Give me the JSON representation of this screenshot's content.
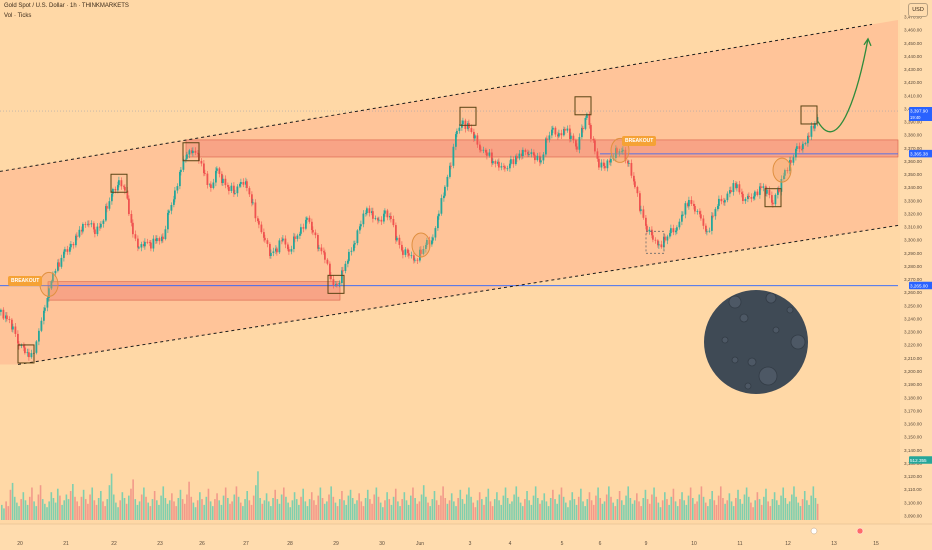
{
  "header": {
    "symbol": "Gold Spot / U.S. Dollar · 1h · THINKMARKETS",
    "volume_label": "Vol · Ticks",
    "currency": "USD"
  },
  "badges": {
    "left": "BREAKOUT",
    "mid": "BREAKOUT"
  },
  "chart_data": {
    "type": "candlestick",
    "price_axis": {
      "ticks": [
        "3,470.00",
        "3,460.00",
        "3,450.00",
        "3,440.00",
        "3,430.00",
        "3,420.00",
        "3,410.00",
        "3,400.00",
        "3,390.00",
        "3,380.00",
        "3,370.00",
        "3,360.00",
        "3,350.00",
        "3,340.00",
        "3,330.00",
        "3,320.00",
        "3,310.00",
        "3,300.00",
        "3,290.00",
        "3,280.00",
        "3,270.00",
        "3,260.00",
        "3,250.00",
        "3,240.00",
        "3,230.00",
        "3,220.00",
        "3,210.00",
        "3,200.00",
        "3,190.00",
        "3,180.00",
        "3,170.00",
        "3,160.00",
        "3,150.00",
        "3,140.00",
        "3,130.00",
        "3,120.00",
        "3,110.00",
        "3,100.00",
        "3,090.00"
      ],
      "ylim": [
        3085,
        3478
      ]
    },
    "time_axis": [
      "20",
      "21",
      "22",
      "23",
      "26",
      "27",
      "28",
      "29",
      "30",
      "Jun",
      "3",
      "4",
      "5",
      "6",
      "9",
      "10",
      "11",
      "12",
      "13",
      "15"
    ],
    "price_markers": [
      {
        "value": 3398,
        "label": "3,397.90",
        "sub": "19:40",
        "color": "#2962ff"
      },
      {
        "value": 3365.38,
        "label": "3,365.38",
        "color": "#2962ff"
      },
      {
        "value": 3265,
        "label": "3,265.00",
        "color": "#2962ff"
      },
      {
        "value": 3132,
        "label": "512.355",
        "color": "#26a69a"
      }
    ],
    "horizontal_levels": [
      3265,
      3365.38
    ],
    "resistance_zone": [
      3363,
      3376
    ],
    "support_zone": [
      3254,
      3268
    ],
    "channel": {
      "upper": [
        [
          0,
          3352
        ],
        [
          872,
          3464
        ]
      ],
      "lower": [
        [
          18,
          3205
        ],
        [
          932,
          3315
        ]
      ]
    },
    "close_path": [
      [
        0,
        3245
      ],
      [
        6,
        3240
      ],
      [
        12,
        3232
      ],
      [
        18,
        3222
      ],
      [
        24,
        3215
      ],
      [
        28,
        3210
      ],
      [
        33,
        3215
      ],
      [
        38,
        3230
      ],
      [
        44,
        3250
      ],
      [
        48,
        3262
      ],
      [
        52,
        3275
      ],
      [
        58,
        3282
      ],
      [
        64,
        3290
      ],
      [
        70,
        3296
      ],
      [
        76,
        3302
      ],
      [
        82,
        3310
      ],
      [
        88,
        3315
      ],
      [
        94,
        3305
      ],
      [
        100,
        3312
      ],
      [
        106,
        3325
      ],
      [
        112,
        3335
      ],
      [
        118,
        3345
      ],
      [
        124,
        3338
      ],
      [
        128,
        3322
      ],
      [
        132,
        3305
      ],
      [
        138,
        3292
      ],
      [
        144,
        3300
      ],
      [
        150,
        3296
      ],
      [
        156,
        3300
      ],
      [
        162,
        3302
      ],
      [
        168,
        3320
      ],
      [
        174,
        3335
      ],
      [
        180,
        3355
      ],
      [
        186,
        3364
      ],
      [
        192,
        3370
      ],
      [
        198,
        3362
      ],
      [
        204,
        3348
      ],
      [
        210,
        3340
      ],
      [
        216,
        3352
      ],
      [
        222,
        3345
      ],
      [
        228,
        3340
      ],
      [
        234,
        3335
      ],
      [
        240,
        3346
      ],
      [
        246,
        3340
      ],
      [
        252,
        3325
      ],
      [
        258,
        3312
      ],
      [
        264,
        3298
      ],
      [
        270,
        3290
      ],
      [
        276,
        3294
      ],
      [
        282,
        3300
      ],
      [
        288,
        3292
      ],
      [
        294,
        3300
      ],
      [
        300,
        3306
      ],
      [
        306,
        3318
      ],
      [
        312,
        3305
      ],
      [
        318,
        3295
      ],
      [
        324,
        3288
      ],
      [
        330,
        3268
      ],
      [
        336,
        3266
      ],
      [
        342,
        3275
      ],
      [
        348,
        3288
      ],
      [
        354,
        3300
      ],
      [
        360,
        3312
      ],
      [
        366,
        3325
      ],
      [
        372,
        3318
      ],
      [
        378,
        3312
      ],
      [
        384,
        3322
      ],
      [
        390,
        3315
      ],
      [
        396,
        3300
      ],
      [
        402,
        3292
      ],
      [
        408,
        3288
      ],
      [
        414,
        3285
      ],
      [
        420,
        3290
      ],
      [
        426,
        3296
      ],
      [
        432,
        3302
      ],
      [
        438,
        3320
      ],
      [
        444,
        3340
      ],
      [
        450,
        3360
      ],
      [
        456,
        3382
      ],
      [
        462,
        3390
      ],
      [
        468,
        3385
      ],
      [
        474,
        3376
      ],
      [
        480,
        3370
      ],
      [
        486,
        3365
      ],
      [
        492,
        3360
      ],
      [
        498,
        3358
      ],
      [
        504,
        3352
      ],
      [
        510,
        3360
      ],
      [
        516,
        3362
      ],
      [
        522,
        3366
      ],
      [
        528,
        3368
      ],
      [
        534,
        3362
      ],
      [
        540,
        3360
      ],
      [
        546,
        3378
      ],
      [
        552,
        3382
      ],
      [
        558,
        3380
      ],
      [
        564,
        3384
      ],
      [
        570,
        3378
      ],
      [
        576,
        3372
      ],
      [
        582,
        3385
      ],
      [
        586,
        3395
      ],
      [
        590,
        3380
      ],
      [
        594,
        3368
      ],
      [
        598,
        3358
      ],
      [
        604,
        3355
      ],
      [
        610,
        3362
      ],
      [
        616,
        3368
      ],
      [
        622,
        3365
      ],
      [
        628,
        3358
      ],
      [
        634,
        3340
      ],
      [
        640,
        3322
      ],
      [
        646,
        3310
      ],
      [
        652,
        3300
      ],
      [
        658,
        3296
      ],
      [
        664,
        3300
      ],
      [
        670,
        3305
      ],
      [
        676,
        3310
      ],
      [
        682,
        3320
      ],
      [
        688,
        3330
      ],
      [
        694,
        3325
      ],
      [
        700,
        3315
      ],
      [
        706,
        3305
      ],
      [
        712,
        3318
      ],
      [
        718,
        3328
      ],
      [
        724,
        3332
      ],
      [
        730,
        3338
      ],
      [
        736,
        3342
      ],
      [
        742,
        3332
      ],
      [
        748,
        3330
      ],
      [
        754,
        3335
      ],
      [
        760,
        3340
      ],
      [
        766,
        3336
      ],
      [
        772,
        3330
      ],
      [
        778,
        3338
      ],
      [
        784,
        3352
      ],
      [
        790,
        3360
      ],
      [
        796,
        3368
      ],
      [
        802,
        3372
      ],
      [
        808,
        3380
      ],
      [
        814,
        3388
      ],
      [
        818,
        3396
      ]
    ],
    "volume": [
      13,
      10,
      16,
      12,
      26,
      32,
      20,
      15,
      12,
      18,
      24,
      17,
      13,
      20,
      28,
      16,
      12,
      22,
      30,
      18,
      14,
      11,
      16,
      24,
      19,
      15,
      27,
      21,
      13,
      17,
      22,
      18,
      25,
      31,
      20,
      16,
      12,
      20,
      26,
      18,
      14,
      22,
      28,
      17,
      13,
      19,
      25,
      16,
      12,
      18,
      30,
      40,
      22,
      15,
      11,
      17,
      24,
      19,
      14,
      21,
      27,
      35,
      18,
      13,
      16,
      22,
      28,
      20,
      15,
      12,
      18,
      25,
      17,
      13,
      21,
      29,
      19,
      14,
      17,
      23,
      16,
      12,
      19,
      26,
      18,
      14,
      22,
      33,
      20,
      15,
      11,
      17,
      24,
      18,
      13,
      20,
      27,
      16,
      12,
      18,
      23,
      17,
      13,
      21,
      28,
      19,
      14,
      16,
      22,
      29,
      20,
      15,
      12,
      18,
      25,
      17,
      13,
      21,
      30,
      42,
      19,
      14,
      17,
      23,
      16,
      12,
      19,
      26,
      18,
      14,
      22,
      28,
      20,
      15,
      11,
      17,
      24,
      18,
      13,
      20,
      27,
      16,
      12,
      18,
      24,
      17,
      13,
      21,
      28,
      19,
      14,
      16,
      22,
      29,
      20,
      15,
      12,
      18,
      25,
      17,
      13,
      21,
      26,
      19,
      14,
      17,
      23,
      16,
      12,
      19,
      26,
      18,
      14,
      22,
      28,
      20,
      15,
      11,
      17,
      24,
      18,
      13,
      20,
      27,
      16,
      12,
      18,
      24,
      17,
      13,
      21,
      28,
      19,
      14,
      16,
      22,
      30,
      20,
      15,
      12,
      18,
      25,
      17,
      13,
      21,
      29,
      19,
      14,
      17,
      23,
      16,
      12,
      19,
      26,
      18,
      14,
      22,
      28,
      20,
      15,
      11,
      17,
      24,
      18,
      13,
      20,
      27,
      16,
      12,
      18,
      24,
      17,
      13,
      21,
      28,
      19,
      14,
      16,
      22,
      29,
      20,
      15,
      12,
      18,
      25,
      17,
      13,
      21,
      29,
      19,
      14,
      17,
      23,
      16,
      12,
      19,
      26,
      18,
      14,
      22,
      28,
      20,
      15,
      11,
      17,
      24,
      18,
      13,
      20,
      27,
      16,
      12,
      18,
      24,
      17,
      13,
      21,
      28,
      19,
      14,
      16,
      22,
      29,
      20,
      15,
      12,
      18,
      25,
      17,
      13,
      21,
      29,
      19,
      14,
      17,
      23,
      16,
      12,
      19,
      26,
      18,
      14,
      22,
      28,
      20,
      15,
      11,
      17,
      24,
      18,
      13,
      20,
      27,
      16,
      12,
      18,
      24,
      17,
      13,
      21,
      28,
      19,
      14,
      16,
      22,
      29,
      20,
      15,
      12,
      18,
      25,
      17,
      13,
      21,
      29,
      19,
      14,
      17,
      23,
      16,
      12,
      19,
      26,
      18,
      14,
      22,
      28,
      20,
      15,
      11,
      17,
      24,
      18,
      13,
      20,
      27,
      16,
      12,
      18,
      24,
      17,
      13,
      21,
      28,
      19,
      14,
      16,
      22,
      29,
      20,
      15,
      12,
      18,
      25,
      17,
      13,
      21,
      29,
      19,
      14
    ],
    "boxes": [
      {
        "x": 26,
        "y": 3213
      },
      {
        "x": 119,
        "y": 3343
      },
      {
        "x": 191,
        "y": 3367
      },
      {
        "x": 336,
        "y": 3266
      },
      {
        "x": 468,
        "y": 3394
      },
      {
        "x": 583,
        "y": 3402
      },
      {
        "x": 773,
        "y": 3332
      },
      {
        "x": 809,
        "y": 3395
      }
    ],
    "circles": [
      {
        "x": 49,
        "y": 3266
      },
      {
        "x": 421,
        "y": 3296
      },
      {
        "x": 620,
        "y": 3368
      },
      {
        "x": 782,
        "y": 3353
      }
    ],
    "dashed_box": {
      "x": 655,
      "y": 3298
    },
    "projection": [
      [
        818,
        3390
      ],
      [
        840,
        3370
      ],
      [
        860,
        3420
      ],
      [
        868,
        3453
      ]
    ]
  },
  "colors": {
    "background": "#ffd8a6",
    "up": "#26a69a",
    "down": "#ef5350",
    "zone": "#f28b76",
    "level": "#2962ff",
    "moon": "#3f4a55",
    "arrow": "#2e8b3b",
    "box": "#5a4314",
    "circle": "#e09040"
  }
}
